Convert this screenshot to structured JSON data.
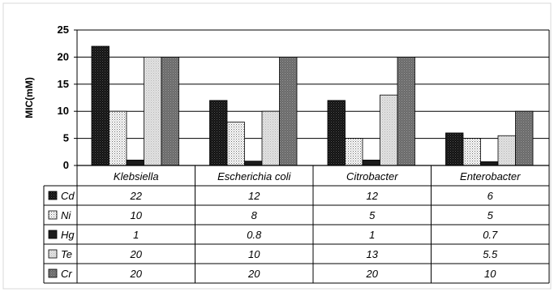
{
  "chart_data": {
    "type": "bar",
    "ylabel": "MIC(mM)",
    "ylim": [
      0,
      25
    ],
    "yticks": [
      "0",
      "5",
      "10",
      "15",
      "20",
      "25"
    ],
    "categories": [
      "Klebsiella",
      "Escherichia coli",
      "Citrobacter",
      "Enterobacter"
    ],
    "series": [
      {
        "name": "Cd",
        "values": [
          22,
          12,
          12,
          6
        ],
        "labels": [
          "22",
          "12",
          "12",
          "6"
        ]
      },
      {
        "name": "Ni",
        "values": [
          10,
          8,
          5,
          5
        ],
        "labels": [
          "10",
          "8",
          "5",
          "5"
        ]
      },
      {
        "name": "Hg",
        "values": [
          1,
          0.8,
          1,
          0.7
        ],
        "labels": [
          "1",
          "0.8",
          "1",
          "0.7"
        ]
      },
      {
        "name": "Te",
        "values": [
          20,
          10,
          13,
          5.5
        ],
        "labels": [
          "20",
          "10",
          "13",
          "5.5"
        ]
      },
      {
        "name": "Cr",
        "values": [
          20,
          20,
          20,
          10
        ],
        "labels": [
          "20",
          "20",
          "20",
          "10"
        ]
      }
    ],
    "grid": true,
    "legend": "data-table-below"
  }
}
